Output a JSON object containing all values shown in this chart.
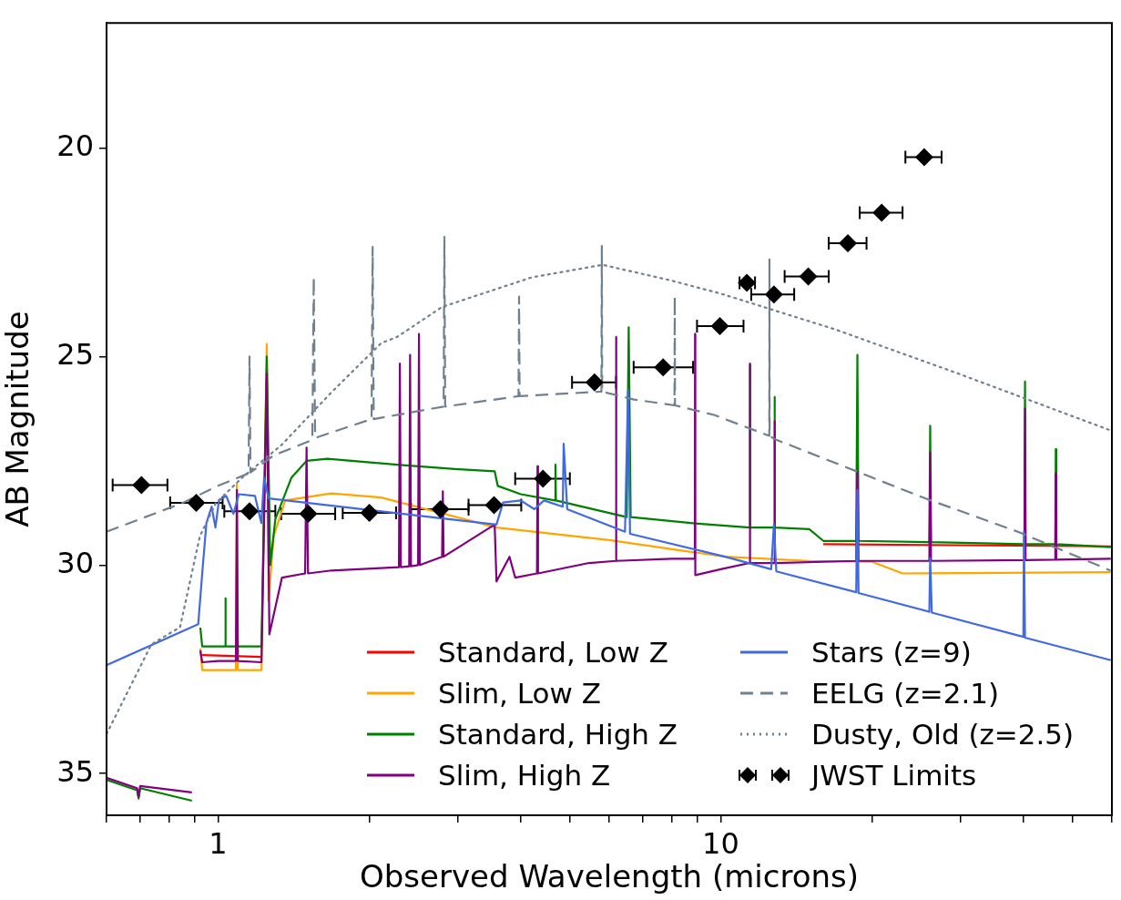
{
  "chart_data": {
    "type": "line",
    "xlabel": "Observed Wavelength (microns)",
    "ylabel": "AB Magnitude",
    "log": "x",
    "grid": false,
    "legend": "bottom right",
    "xlim": [
      0.6,
      60
    ],
    "ylim": [
      36,
      17
    ],
    "xticks": [
      {
        "value": 0.6,
        "label": null
      },
      {
        "value": 0.7,
        "label": null
      },
      {
        "value": 0.8,
        "label": null
      },
      {
        "value": 0.9,
        "label": null
      },
      1,
      {
        "value": 2,
        "label": null
      },
      {
        "value": 3,
        "label": null
      },
      {
        "value": 4,
        "label": null
      },
      {
        "value": 5,
        "label": null
      },
      {
        "value": 6,
        "label": null
      },
      {
        "value": 7,
        "label": null
      },
      {
        "value": 8,
        "label": null
      },
      {
        "value": 9,
        "label": null
      },
      10,
      {
        "value": 20,
        "label": null
      },
      {
        "value": 30,
        "label": null
      },
      {
        "value": 40,
        "label": null
      },
      {
        "value": 50,
        "label": null
      },
      {
        "value": 60,
        "label": null
      }
    ],
    "yticks": [
      20,
      25,
      30,
      35
    ],
    "series": [
      {
        "name": "Standard, Low Z",
        "color": "#ff0000",
        "line_style": "solid",
        "marker": "none",
        "x": [
          0.93,
          1.22,
          1.25,
          16.0,
          59.7
        ],
        "values": [
          32.16,
          32.2,
          null,
          29.5,
          29.55
        ]
      },
      {
        "name": "Slim, Low Z",
        "color": "#ffa500",
        "line_style": "solid",
        "marker": "none",
        "x": [
          0.922,
          0.93,
          1.085,
          1.09,
          1.095,
          1.22,
          1.25,
          1.26,
          1.29,
          1.36,
          1.68,
          2.11,
          3.58,
          6.0,
          10.2,
          15.0,
          20.0,
          23.0,
          59.7
        ],
        "values": [
          32.0,
          32.52,
          32.52,
          28.04,
          32.52,
          32.52,
          24.7,
          30.86,
          29.31,
          28.45,
          28.28,
          28.38,
          29.1,
          29.4,
          29.8,
          29.9,
          29.92,
          30.2,
          30.17
        ]
      },
      {
        "name": "Standard, High Z",
        "color": "#008000",
        "line_style": "solid",
        "marker": "none",
        "x": [
          0.6,
          0.69,
          0.695,
          0.7,
          0.887,
          0.9,
          0.92,
          0.922,
          0.93,
          1.033,
          1.034,
          1.036,
          1.22,
          1.25,
          1.27,
          1.3,
          1.4,
          1.5,
          1.65,
          2.3,
          3.0,
          3.55,
          3.6,
          4.0,
          4.68,
          4.69,
          4.7,
          6.5,
          6.56,
          6.62,
          8.9,
          11.42,
          11.43,
          11.44,
          12.79,
          12.8,
          12.81,
          15.0,
          16.0,
          18.6,
          18.7,
          18.8,
          26.0,
          26.1,
          26.2,
          40.2,
          40.3,
          40.4,
          46.3,
          46.4,
          46.5,
          59.7
        ],
        "values": [
          35.15,
          35.4,
          35.6,
          35.35,
          35.65,
          null,
          null,
          31.5,
          31.95,
          31.95,
          30.8,
          31.95,
          31.95,
          25.0,
          30.0,
          28.9,
          27.9,
          27.5,
          27.45,
          27.6,
          27.7,
          27.75,
          28.1,
          28.3,
          28.45,
          27.59,
          28.45,
          28.85,
          24.3,
          28.85,
          29.0,
          29.1,
          25.2,
          29.1,
          29.1,
          25.97,
          29.1,
          29.14,
          29.42,
          29.42,
          24.96,
          29.42,
          29.45,
          26.66,
          29.45,
          29.5,
          25.6,
          29.5,
          29.5,
          27.22,
          29.5,
          29.57
        ]
      },
      {
        "name": "Slim, High Z",
        "color": "#800080",
        "line_style": "solid",
        "marker": "none",
        "x": [
          0.6,
          0.69,
          0.695,
          0.7,
          0.887,
          0.9,
          0.92,
          0.922,
          0.93,
          1.0,
          1.085,
          1.09,
          1.095,
          1.22,
          1.25,
          1.265,
          1.34,
          1.49,
          1.5,
          1.51,
          1.68,
          2.29,
          2.3,
          2.31,
          2.4,
          2.41,
          2.42,
          2.5,
          2.51,
          2.52,
          2.79,
          2.8,
          2.81,
          3.55,
          3.58,
          3.8,
          3.9,
          4.31,
          4.32,
          4.33,
          5.47,
          6.18,
          6.19,
          6.2,
          8.0,
          8.88,
          8.89,
          8.9,
          10.0,
          11.42,
          11.43,
          11.44,
          12.79,
          12.8,
          12.81,
          18.6,
          18.7,
          18.8,
          26.0,
          26.1,
          26.2,
          40.2,
          40.3,
          40.4,
          46.3,
          46.4,
          46.5,
          59.7
        ],
        "values": [
          35.1,
          35.35,
          35.55,
          35.3,
          35.45,
          null,
          null,
          32.05,
          32.33,
          32.3,
          32.3,
          28.2,
          32.3,
          32.33,
          25.4,
          31.66,
          30.3,
          30.2,
          27.18,
          30.2,
          30.13,
          30.05,
          25.17,
          30.05,
          30.03,
          24.96,
          30.03,
          30.0,
          24.46,
          30.0,
          29.8,
          28.23,
          29.8,
          29.03,
          30.39,
          29.8,
          30.3,
          30.2,
          27.63,
          30.2,
          29.95,
          29.9,
          24.53,
          29.9,
          29.85,
          29.85,
          24.46,
          30.24,
          30.1,
          29.95,
          25.17,
          29.95,
          29.95,
          26.55,
          29.95,
          29.9,
          27.76,
          29.9,
          29.9,
          27.3,
          29.9,
          29.88,
          26.25,
          29.88,
          29.87,
          27.8,
          29.87,
          29.85
        ]
      },
      {
        "name": "Stars (z=9)",
        "color": "#4169e1",
        "line_style": "solid",
        "marker": "none",
        "x": [
          0.6,
          0.913,
          0.932,
          0.948,
          0.971,
          0.988,
          1.004,
          1.038,
          1.073,
          1.1,
          1.184,
          1.219,
          1.235,
          1.26,
          3.58,
          3.69,
          4.0,
          4.26,
          4.45,
          4.85,
          4.87,
          4.95,
          6.45,
          6.54,
          6.6,
          10.2,
          12.6,
          12.76,
          12.9,
          18.6,
          18.7,
          18.8,
          26.0,
          26.1,
          26.3,
          40.0,
          40.1,
          40.3,
          59.7
        ],
        "values": [
          32.4,
          31.42,
          30.06,
          28.99,
          28.6,
          29.1,
          28.45,
          28.34,
          28.77,
          28.3,
          28.34,
          28.99,
          27.9,
          28.4,
          29.03,
          28.5,
          28.45,
          28.66,
          28.45,
          28.6,
          27.09,
          28.66,
          29.2,
          25.8,
          29.25,
          29.8,
          30.1,
          29.03,
          30.15,
          30.65,
          28.2,
          30.67,
          31.12,
          29.83,
          31.14,
          31.72,
          29.2,
          31.74,
          32.28
        ]
      },
      {
        "name": "EELG (z=2.1)",
        "color": "#708090",
        "line_style": "dashed",
        "marker": "none",
        "x": [
          0.6,
          0.85,
          1.0,
          1.15,
          1.155,
          1.16,
          1.29,
          1.54,
          1.55,
          1.56,
          2.02,
          2.03,
          2.04,
          2.81,
          2.82,
          2.83,
          3.96,
          3.97,
          3.98,
          5.79,
          5.8,
          5.81,
          6.72,
          8.09,
          8.1,
          8.11,
          9.7,
          12.49,
          12.5,
          12.51,
          12.8,
          18.7,
          25.5,
          39.0,
          59.6
        ],
        "values": [
          29.2,
          28.51,
          28.1,
          27.8,
          25.0,
          27.78,
          27.37,
          27.0,
          23.1,
          26.95,
          26.5,
          22.37,
          26.5,
          26.2,
          22.13,
          26.2,
          25.95,
          23.56,
          25.95,
          25.84,
          22.35,
          25.84,
          26.03,
          26.17,
          23.56,
          26.17,
          26.4,
          26.9,
          22.67,
          26.9,
          26.98,
          27.76,
          28.4,
          29.2,
          30.13
        ]
      },
      {
        "name": "Dusty, Old (z=2.5)",
        "color": "#708090",
        "line_style": "dotted",
        "marker": "none",
        "x": [
          0.6,
          0.737,
          0.84,
          0.92,
          0.99,
          1.12,
          1.34,
          1.68,
          2.11,
          2.27,
          2.79,
          4.21,
          5.82,
          7.93,
          10.0,
          16.9,
          29.4,
          59.6
        ],
        "values": [
          34.05,
          31.9,
          31.49,
          29.31,
          28.51,
          27.89,
          27.11,
          25.86,
          24.68,
          24.53,
          23.81,
          23.1,
          22.8,
          23.17,
          23.49,
          24.35,
          25.39,
          26.77
        ]
      },
      {
        "name": "JWST Limits",
        "type": "scatter",
        "color": "#000000",
        "marker": "diamond",
        "x": [
          0.704,
          0.905,
          1.155,
          1.512,
          2.0,
          2.77,
          3.54,
          4.43,
          5.61,
          7.68,
          9.96,
          11.27,
          12.76,
          14.93,
          17.9,
          20.9,
          25.4
        ],
        "values": [
          28.08,
          28.51,
          28.71,
          28.77,
          28.75,
          28.66,
          28.56,
          27.93,
          25.62,
          25.26,
          24.27,
          23.23,
          23.51,
          23.08,
          22.28,
          21.55,
          20.22
        ],
        "xerrors": [
          [
            0.617,
            0.793
          ],
          [
            0.803,
            1.021
          ],
          [
            1.029,
            1.3
          ],
          [
            1.335,
            1.71
          ],
          [
            1.77,
            2.26
          ],
          [
            2.42,
            3.15
          ],
          [
            3.15,
            4.01
          ],
          [
            3.9,
            5.01
          ],
          [
            5.06,
            6.19
          ],
          [
            6.71,
            8.81
          ],
          [
            8.97,
            11.1
          ],
          [
            10.9,
            11.7
          ],
          [
            11.5,
            14.0
          ],
          [
            13.4,
            16.4
          ],
          [
            16.4,
            19.5
          ],
          [
            18.9,
            23.0
          ],
          [
            23.3,
            27.5
          ]
        ]
      }
    ]
  }
}
